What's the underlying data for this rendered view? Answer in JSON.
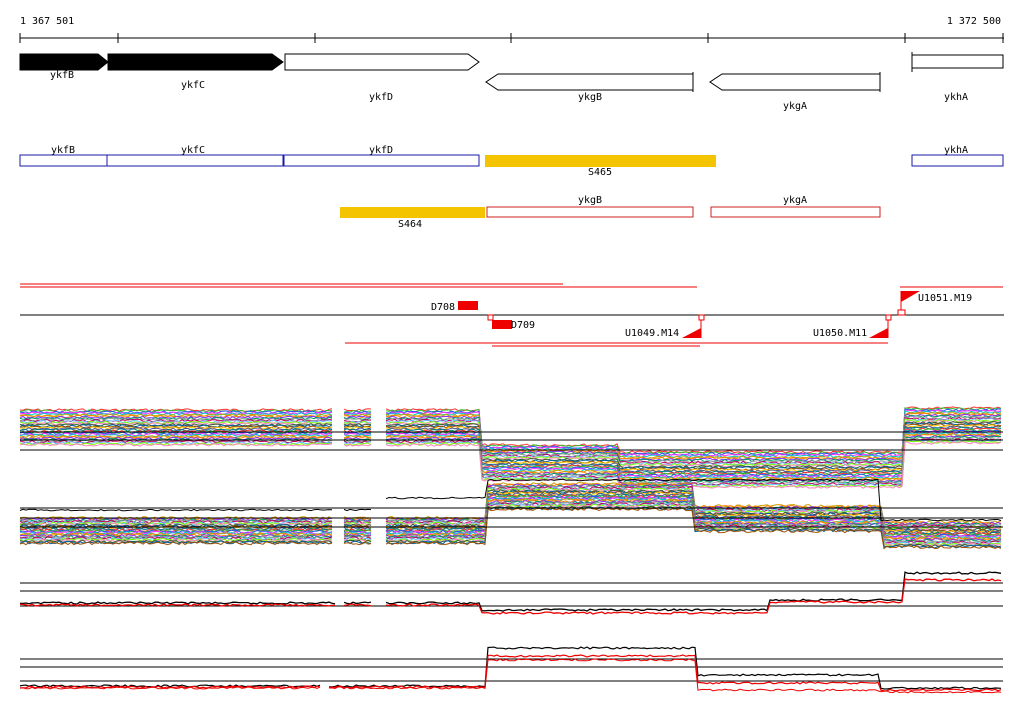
{
  "coordinates": {
    "start_label": "1 367 501",
    "end_label": "1 372 500"
  },
  "genes_track": [
    {
      "name": "ykfB",
      "strand": "+",
      "filled": true
    },
    {
      "name": "ykfC",
      "strand": "+",
      "filled": true
    },
    {
      "name": "ykfD",
      "strand": "+",
      "filled": false
    },
    {
      "name": "ykgB",
      "strand": "-",
      "filled": false
    },
    {
      "name": "ykgA",
      "strand": "-",
      "filled": false
    },
    {
      "name": "ykhA",
      "strand": "+",
      "filled": false
    }
  ],
  "segments_forward": [
    {
      "name": "ykfB",
      "kind": "gene"
    },
    {
      "name": "ykfC",
      "kind": "gene"
    },
    {
      "name": "ykfD",
      "kind": "gene"
    },
    {
      "name": "S465",
      "kind": "new-transcript"
    },
    {
      "name": "ykhA",
      "kind": "gene"
    }
  ],
  "segments_reverse": [
    {
      "name": "S464",
      "kind": "new-transcript"
    },
    {
      "name": "ykgB",
      "kind": "gene"
    },
    {
      "name": "ykgA",
      "kind": "gene"
    }
  ],
  "markers": [
    {
      "name": "D708"
    },
    {
      "name": "D709"
    },
    {
      "name": "U1049.M14"
    },
    {
      "name": "U1050.M11"
    },
    {
      "name": "U1051.M19"
    }
  ],
  "colors": {
    "forward_segment": "#1a1aa8",
    "reverse_segment": "#cc2222",
    "new_transcript": "#f5c400",
    "marker": "#ee0000",
    "gene_filled": "#000000"
  }
}
